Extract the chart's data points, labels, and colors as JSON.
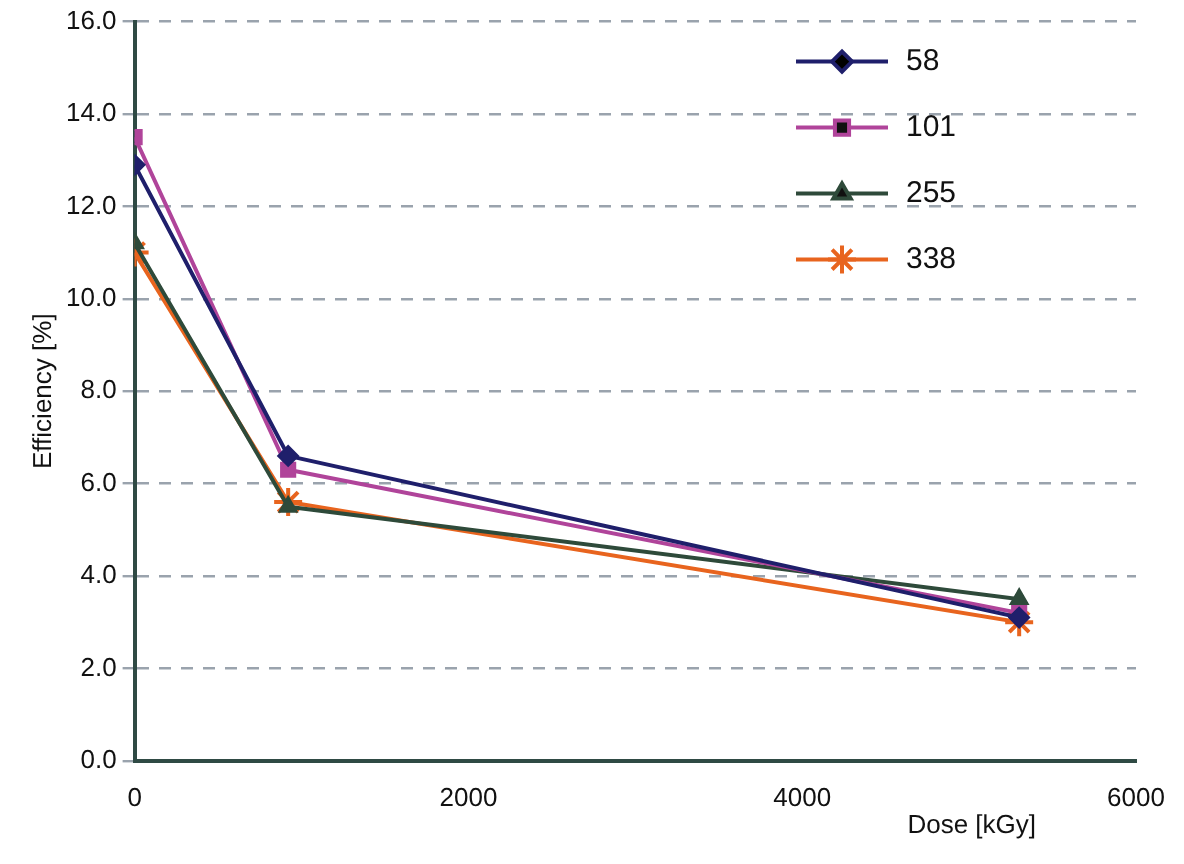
{
  "chart_data": {
    "type": "line",
    "xlabel": "Dose [kGy]",
    "ylabel": "Efficiency [%]",
    "x": [
      0,
      920,
      5300
    ],
    "series": [
      {
        "name": "58",
        "color": "#1f1f6b",
        "marker": "diamond",
        "values": [
          12.9,
          6.6,
          3.1
        ]
      },
      {
        "name": "101",
        "color": "#b0449a",
        "marker": "square",
        "values": [
          13.5,
          6.3,
          3.2
        ]
      },
      {
        "name": "255",
        "color": "#2e4a3a",
        "marker": "triangle",
        "values": [
          11.2,
          5.5,
          3.5
        ]
      },
      {
        "name": "338",
        "color": "#e8641e",
        "marker": "cross",
        "values": [
          11.0,
          5.6,
          3.0
        ]
      }
    ],
    "xlim": [
      0,
      6000
    ],
    "xticks": [
      0,
      2000,
      4000,
      6000
    ],
    "ylim": [
      0,
      16
    ],
    "yticks": [
      {
        "value": 0,
        "label": "0.0"
      },
      {
        "value": 2,
        "label": "2.0"
      },
      {
        "value": 4,
        "label": "4.0"
      },
      {
        "value": 6,
        "label": "6.0"
      },
      {
        "value": 8,
        "label": "8.0"
      },
      {
        "value": 10,
        "label": "10.0"
      },
      {
        "value": 12,
        "label": "12.0"
      },
      {
        "value": 14,
        "label": "14.0"
      },
      {
        "value": 16,
        "label": "16.0"
      }
    ],
    "grid": "y",
    "legend": "top right",
    "line_style": "solid"
  }
}
